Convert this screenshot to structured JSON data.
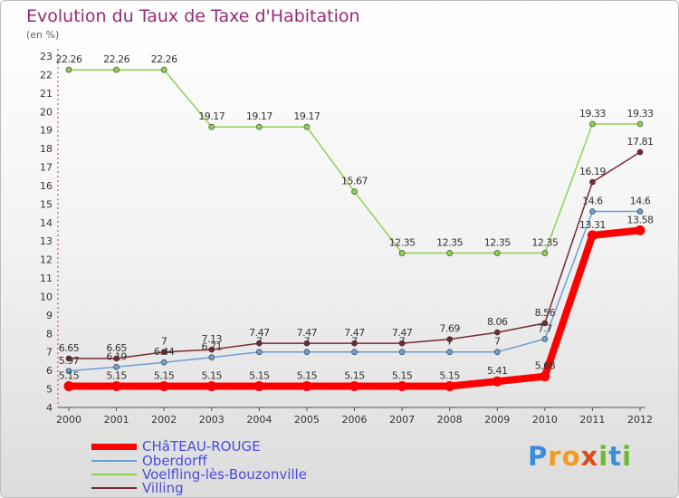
{
  "chart_data": {
    "type": "line",
    "title": "Evolution du Taux de Taxe d'Habitation",
    "subtitle": "(en %)",
    "x": [
      "2000",
      "2001",
      "2002",
      "2003",
      "2004",
      "2005",
      "2006",
      "2007",
      "2008",
      "2009",
      "2010",
      "2011",
      "2012"
    ],
    "ylim": [
      4,
      23
    ],
    "yticks": [
      4,
      5,
      6,
      7,
      8,
      9,
      10,
      11,
      12,
      13,
      14,
      15,
      16,
      17,
      18,
      19,
      20,
      21,
      22,
      23
    ],
    "series": [
      {
        "name": "CHâTEAU-ROUGE",
        "color": "#ff0000",
        "values": [
          5.15,
          5.15,
          5.15,
          5.15,
          5.15,
          5.15,
          5.15,
          5.15,
          5.15,
          5.41,
          5.68,
          13.31,
          13.58
        ],
        "labels": [
          "5.15",
          "5.15",
          "5.15",
          "5.15",
          "5.15",
          "5.15",
          "5.15",
          "5.15",
          "5.15",
          "5.41",
          "5.68",
          "13.31",
          "13.58"
        ]
      },
      {
        "name": "Oberdorff",
        "color": "#6a9fd4",
        "values": [
          5.97,
          6.19,
          6.44,
          6.71,
          7,
          7,
          7,
          7,
          7,
          7,
          7.7,
          14.6,
          14.6
        ],
        "labels": [
          "5.97",
          "6.19",
          "6.44",
          "6.71",
          "7",
          "7",
          "7",
          "7",
          "7",
          "7",
          "7.7",
          "14.6",
          "14.6"
        ]
      },
      {
        "name": "Voelfling-lès-Bouzonville",
        "color": "#8fd14f",
        "values": [
          22.26,
          22.26,
          22.26,
          19.17,
          19.17,
          19.17,
          15.67,
          12.35,
          12.35,
          12.35,
          12.35,
          19.33,
          19.33
        ],
        "labels": [
          "22.26",
          "22.26",
          "22.26",
          "19.17",
          "19.17",
          "19.17",
          "15.67",
          "12.35",
          "12.35",
          "12.35",
          "12.35",
          "19.33",
          "19.33"
        ]
      },
      {
        "name": "Villing",
        "color": "#7a2a35",
        "values": [
          6.65,
          6.65,
          7,
          7.13,
          7.47,
          7.47,
          7.47,
          7.47,
          7.69,
          8.06,
          8.56,
          16.19,
          17.81
        ],
        "labels": [
          "6.65",
          "6.65",
          "7",
          "7.13",
          "7.47",
          "7.47",
          "7.47",
          "7.47",
          "7.69",
          "8.06",
          "8.56",
          "16.19",
          "17.81"
        ]
      }
    ],
    "grid": false,
    "legend_position": "bottom-left"
  },
  "brand": {
    "letters": [
      "P",
      "r",
      "o",
      "x",
      "i",
      "t",
      "i"
    ],
    "colors": [
      "#3c8dd8",
      "#f29b1d",
      "#f29b1d",
      "#e04b1c",
      "#6dbb2a",
      "#3c8dd8",
      "#6dbb2a"
    ]
  }
}
